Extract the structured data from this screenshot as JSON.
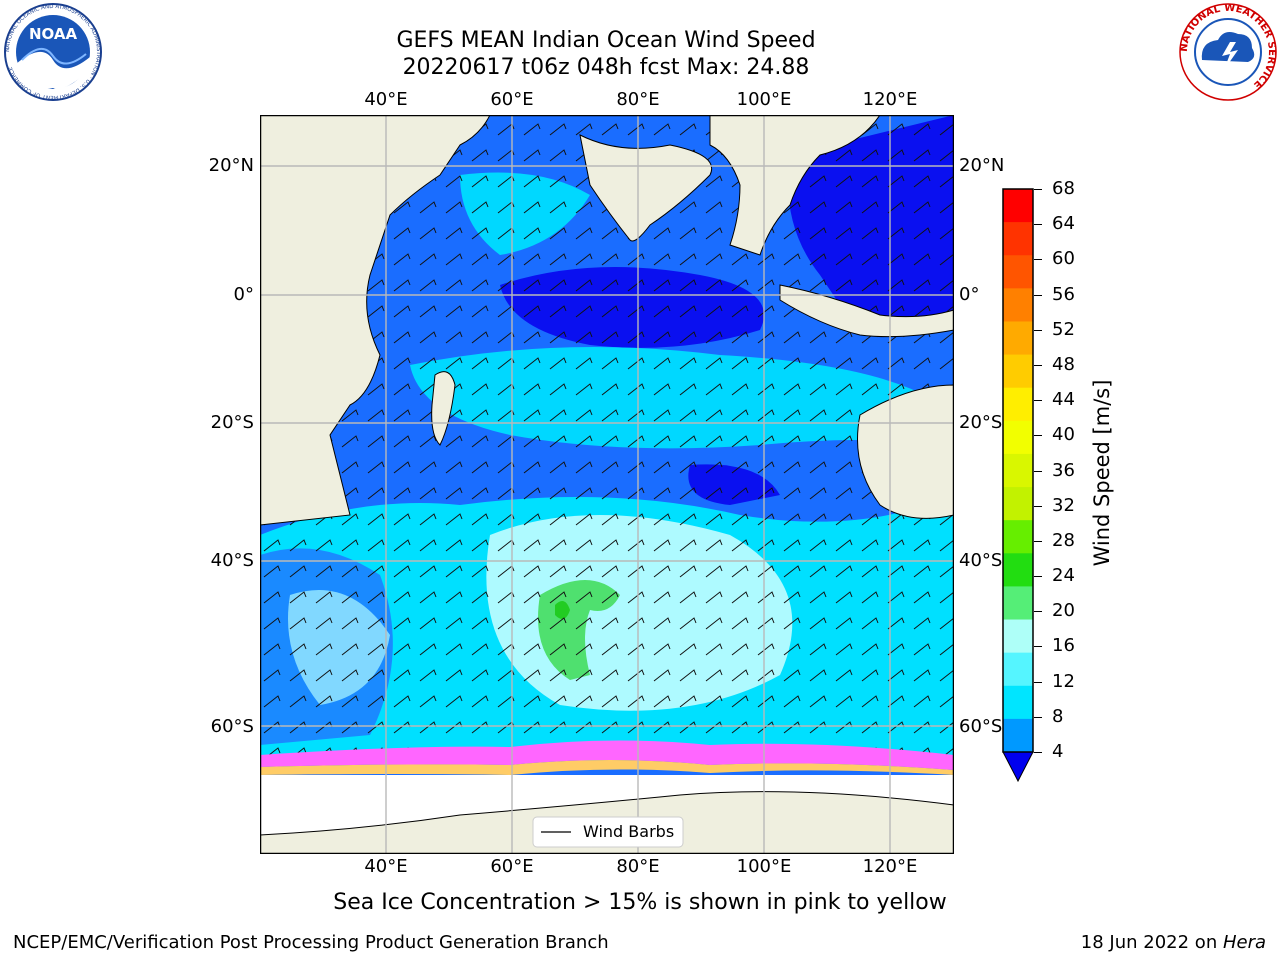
{
  "title": {
    "line1": "GEFS MEAN Indian Ocean Wind Speed",
    "line2": "20220617 t06z 048h fcst   Max: 24.88"
  },
  "map": {
    "lon_ticks": [
      "40°E",
      "60°E",
      "80°E",
      "100°E",
      "120°E"
    ],
    "lat_ticks": [
      "20°N",
      "0°",
      "20°S",
      "40°S",
      "60°S"
    ],
    "legend_label": "Wind Barbs",
    "colors": {
      "land": "#efefdf",
      "ocean_low": "#0000ff",
      "ocean_mid": "#1a6dff",
      "ocean_hi": "#00d8ff",
      "light": "#aefaff",
      "green": "#4fe06f",
      "ice_pink": "#ff66ff"
    }
  },
  "colorbar": {
    "title": "Wind Speed [m/s]",
    "ticks": [
      "68",
      "64",
      "60",
      "56",
      "52",
      "48",
      "44",
      "40",
      "36",
      "32",
      "28",
      "24",
      "20",
      "16",
      "12",
      "8",
      "4"
    ],
    "colors": [
      "#ff0000",
      "#ff3300",
      "#ff5500",
      "#ff8000",
      "#ffaa00",
      "#ffcc00",
      "#ffee00",
      "#f2ff00",
      "#d9f700",
      "#c2f200",
      "#66ee00",
      "#22dd11",
      "#55ee77",
      "#aefff8",
      "#55f5ff",
      "#00e5ff",
      "#0099ff",
      "#0040ff"
    ]
  },
  "caption": "Sea Ice Concentration > 15% is shown in pink to yellow",
  "footer": {
    "left": "NCEP/EMC/Verification Post Processing Product Generation Branch",
    "right_date": "18 Jun 2022 on ",
    "right_host": "Hera"
  },
  "logos": {
    "noaa_text": "NOAA",
    "noaa_ring": "NATIONAL OCEANIC AND ATMOSPHERIC ADMINISTRATION · U.S. DEPARTMENT OF COMMERCE",
    "nws_ring": "NATIONAL WEATHER SERVICE"
  }
}
